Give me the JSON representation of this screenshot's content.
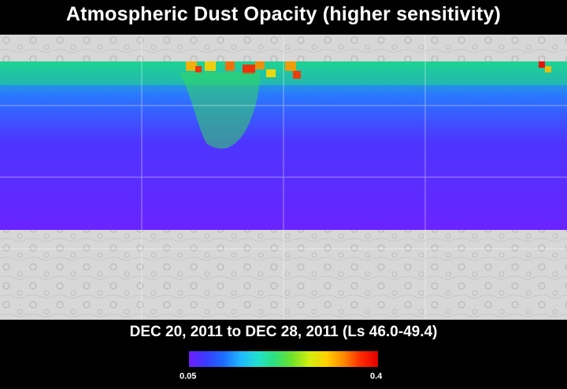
{
  "title": "Atmospheric Dust Opacity (higher sensitivity)",
  "date_range": "DEC 20, 2011 to DEC 28, 2011 (Ls 46.0-49.4)",
  "legend": {
    "min_label": "0.05",
    "max_label": "0.4",
    "colors": [
      "#6f1cff",
      "#3a3cff",
      "#1c6cff",
      "#1fb6ff",
      "#22e0d0",
      "#2ee07a",
      "#6fe22a",
      "#d2ee10",
      "#ffd000",
      "#ff8a00",
      "#ff2a00",
      "#e00000"
    ]
  },
  "map": {
    "surface_color": "#d9d9d9",
    "grid_color": "#ffffff"
  }
}
